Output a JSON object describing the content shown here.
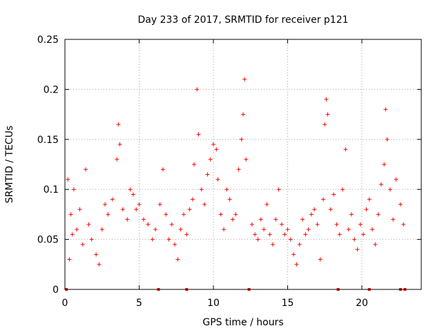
{
  "chart_data": {
    "type": "scatter",
    "title": "Day 233 of 2017, SRMTID for receiver p121",
    "xlabel": "GPS time / hours",
    "ylabel": "SRMTID / TECUs",
    "xlim": [
      0,
      24
    ],
    "ylim": [
      0,
      0.25
    ],
    "grid": true,
    "x_ticks": [
      0,
      5,
      10,
      15,
      20
    ],
    "x_tick_labels": [
      "0",
      "5",
      "10",
      "15",
      "20"
    ],
    "y_ticks": [
      0,
      0.05,
      0.1,
      0.15,
      0.2,
      0.25
    ],
    "y_tick_labels": [
      "0",
      "0.05",
      "0.1",
      "0.15",
      "0.2",
      "0.25"
    ],
    "marker_color": "#ff0000",
    "zero_markers_x": [
      0.1,
      6.3,
      8.2,
      12.4,
      18.4,
      20.5,
      22.6,
      22.9
    ],
    "series": [
      {
        "name": "SRMTID",
        "points": [
          [
            0.2,
            0.11
          ],
          [
            0.3,
            0.03
          ],
          [
            0.4,
            0.075
          ],
          [
            0.5,
            0.055
          ],
          [
            0.6,
            0.1
          ],
          [
            0.8,
            0.06
          ],
          [
            1.0,
            0.08
          ],
          [
            1.2,
            0.045
          ],
          [
            1.4,
            0.12
          ],
          [
            1.6,
            0.065
          ],
          [
            1.8,
            0.05
          ],
          [
            2.1,
            0.035
          ],
          [
            2.3,
            0.025
          ],
          [
            2.5,
            0.06
          ],
          [
            2.7,
            0.085
          ],
          [
            2.9,
            0.075
          ],
          [
            3.2,
            0.09
          ],
          [
            3.5,
            0.13
          ],
          [
            3.6,
            0.165
          ],
          [
            3.7,
            0.145
          ],
          [
            3.9,
            0.08
          ],
          [
            4.2,
            0.07
          ],
          [
            4.4,
            0.1
          ],
          [
            4.6,
            0.095
          ],
          [
            4.8,
            0.08
          ],
          [
            5.0,
            0.085
          ],
          [
            5.3,
            0.07
          ],
          [
            5.6,
            0.065
          ],
          [
            5.9,
            0.05
          ],
          [
            6.1,
            0.06
          ],
          [
            6.4,
            0.085
          ],
          [
            6.6,
            0.12
          ],
          [
            6.8,
            0.075
          ],
          [
            7.0,
            0.05
          ],
          [
            7.2,
            0.065
          ],
          [
            7.4,
            0.045
          ],
          [
            7.6,
            0.03
          ],
          [
            7.8,
            0.06
          ],
          [
            8.0,
            0.075
          ],
          [
            8.2,
            0.055
          ],
          [
            8.4,
            0.08
          ],
          [
            8.6,
            0.09
          ],
          [
            8.7,
            0.125
          ],
          [
            8.9,
            0.2
          ],
          [
            9.0,
            0.155
          ],
          [
            9.2,
            0.1
          ],
          [
            9.4,
            0.085
          ],
          [
            9.6,
            0.115
          ],
          [
            9.8,
            0.13
          ],
          [
            10.0,
            0.145
          ],
          [
            10.2,
            0.14
          ],
          [
            10.3,
            0.11
          ],
          [
            10.5,
            0.075
          ],
          [
            10.7,
            0.06
          ],
          [
            10.9,
            0.1
          ],
          [
            11.1,
            0.09
          ],
          [
            11.3,
            0.07
          ],
          [
            11.5,
            0.075
          ],
          [
            11.7,
            0.12
          ],
          [
            11.9,
            0.15
          ],
          [
            12.0,
            0.175
          ],
          [
            12.1,
            0.21
          ],
          [
            12.2,
            0.13
          ],
          [
            12.6,
            0.065
          ],
          [
            12.8,
            0.055
          ],
          [
            13.0,
            0.05
          ],
          [
            13.2,
            0.07
          ],
          [
            13.4,
            0.06
          ],
          [
            13.6,
            0.085
          ],
          [
            13.8,
            0.055
          ],
          [
            14.0,
            0.045
          ],
          [
            14.2,
            0.07
          ],
          [
            14.4,
            0.1
          ],
          [
            14.6,
            0.065
          ],
          [
            14.8,
            0.055
          ],
          [
            15.0,
            0.06
          ],
          [
            15.2,
            0.05
          ],
          [
            15.4,
            0.035
          ],
          [
            15.6,
            0.025
          ],
          [
            15.8,
            0.045
          ],
          [
            16.0,
            0.07
          ],
          [
            16.2,
            0.055
          ],
          [
            16.4,
            0.06
          ],
          [
            16.6,
            0.075
          ],
          [
            16.8,
            0.08
          ],
          [
            17.0,
            0.065
          ],
          [
            17.2,
            0.03
          ],
          [
            17.4,
            0.09
          ],
          [
            17.5,
            0.165
          ],
          [
            17.6,
            0.19
          ],
          [
            17.7,
            0.175
          ],
          [
            17.9,
            0.08
          ],
          [
            18.1,
            0.095
          ],
          [
            18.3,
            0.065
          ],
          [
            18.5,
            0.055
          ],
          [
            18.7,
            0.1
          ],
          [
            18.9,
            0.14
          ],
          [
            19.1,
            0.06
          ],
          [
            19.3,
            0.075
          ],
          [
            19.5,
            0.05
          ],
          [
            19.7,
            0.04
          ],
          [
            19.9,
            0.065
          ],
          [
            20.1,
            0.055
          ],
          [
            20.3,
            0.08
          ],
          [
            20.5,
            0.09
          ],
          [
            20.7,
            0.06
          ],
          [
            20.9,
            0.045
          ],
          [
            21.1,
            0.075
          ],
          [
            21.3,
            0.105
          ],
          [
            21.5,
            0.125
          ],
          [
            21.6,
            0.18
          ],
          [
            21.7,
            0.15
          ],
          [
            21.9,
            0.1
          ],
          [
            22.1,
            0.07
          ],
          [
            22.3,
            0.11
          ],
          [
            22.6,
            0.085
          ],
          [
            22.8,
            0.065
          ]
        ]
      }
    ]
  }
}
